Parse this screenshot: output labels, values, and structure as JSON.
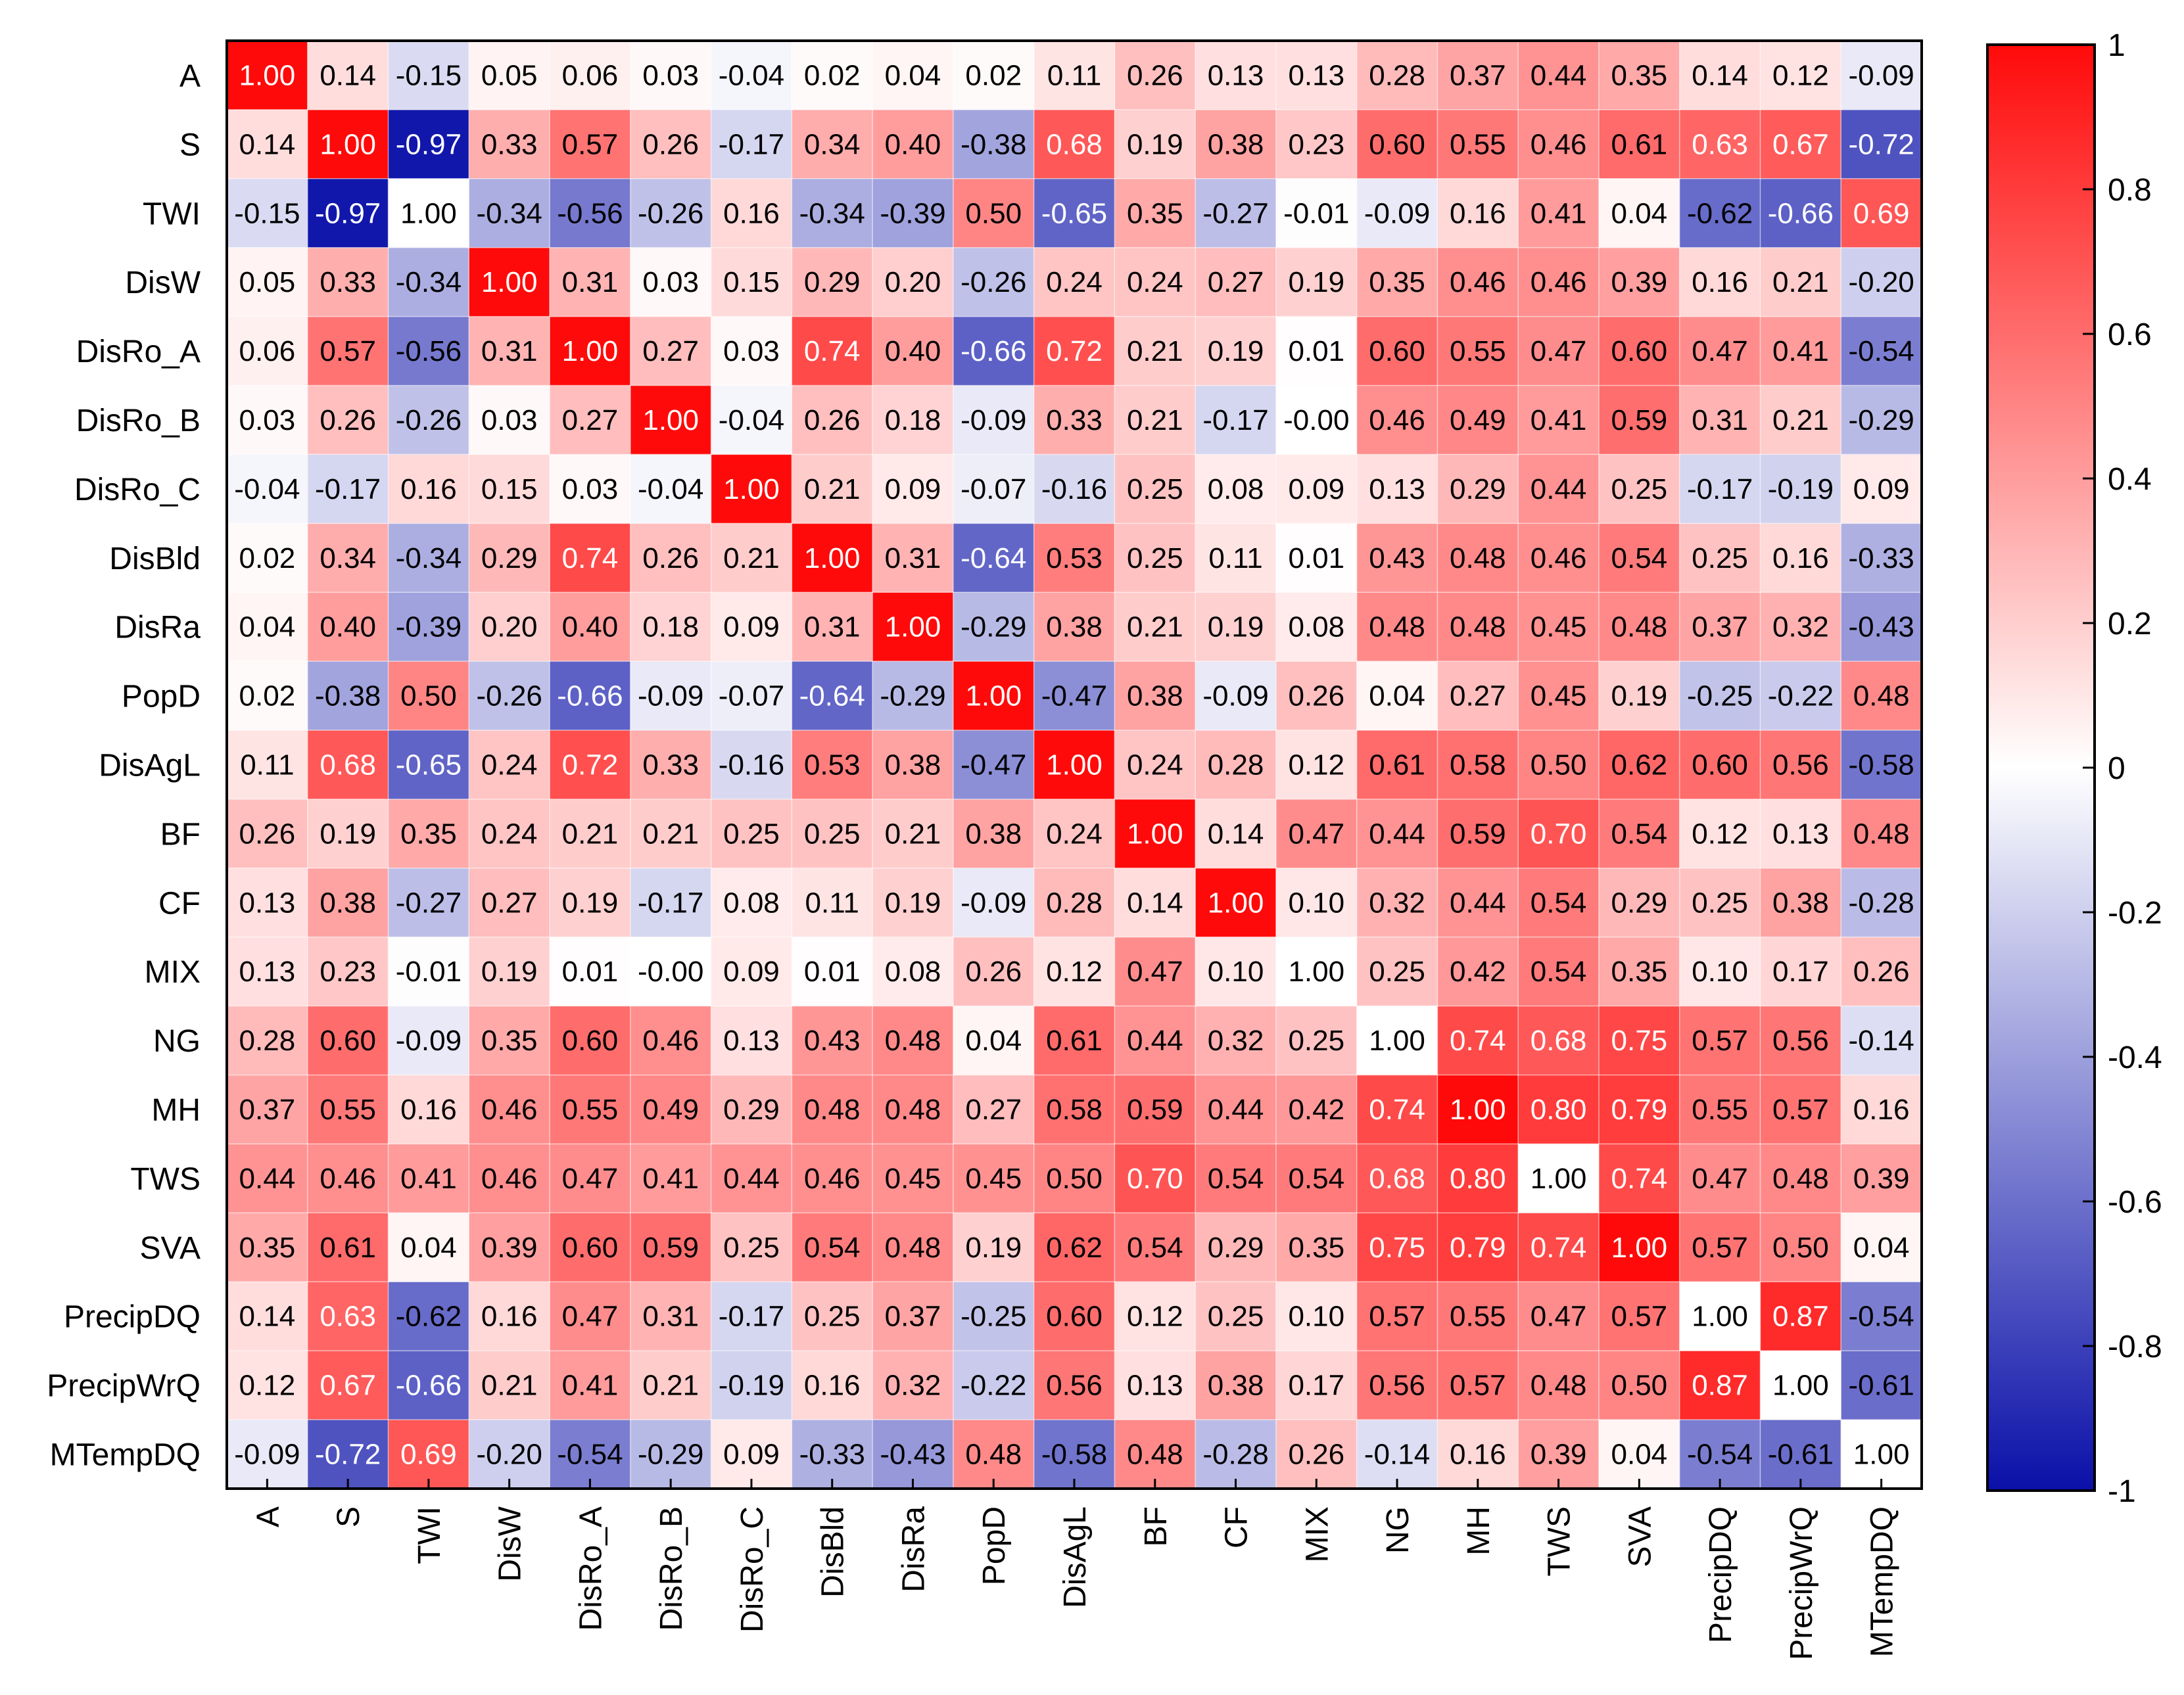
{
  "chart_data": {
    "type": "heatmap",
    "title": "",
    "variables": [
      "A",
      "S",
      "TWI",
      "DisW",
      "DisRo_A",
      "DisRo_B",
      "DisRo_C",
      "DisBld",
      "DisRa",
      "PopD",
      "DisAgL",
      "BF",
      "CF",
      "MIX",
      "NG",
      "MH",
      "TWS",
      "SVA",
      "PrecipDQ",
      "PrecipWrQ",
      "MTempDQ"
    ],
    "matrix": [
      [
        "1.00",
        "0.14",
        "-0.15",
        "0.05",
        "0.06",
        "0.03",
        "-0.04",
        "0.02",
        "0.04",
        "0.02",
        "0.11",
        "0.26",
        "0.13",
        "0.13",
        "0.28",
        "0.37",
        "0.44",
        "0.35",
        "0.14",
        "0.12",
        "-0.09"
      ],
      [
        "0.14",
        "1.00",
        "-0.97",
        "0.33",
        "0.57",
        "0.26",
        "-0.17",
        "0.34",
        "0.40",
        "-0.38",
        "0.68",
        "0.19",
        "0.38",
        "0.23",
        "0.60",
        "0.55",
        "0.46",
        "0.61",
        "0.63",
        "0.67",
        "-0.72"
      ],
      [
        "-0.15",
        "-0.97",
        "1.00",
        "-0.34",
        "-0.56",
        "-0.26",
        "0.16",
        "-0.34",
        "-0.39",
        "0.50",
        "-0.65",
        "0.35",
        "-0.27",
        "-0.01",
        "-0.09",
        "0.16",
        "0.41",
        "0.04",
        "-0.62",
        "-0.66",
        "0.69"
      ],
      [
        "0.05",
        "0.33",
        "-0.34",
        "1.00",
        "0.31",
        "0.03",
        "0.15",
        "0.29",
        "0.20",
        "-0.26",
        "0.24",
        "0.24",
        "0.27",
        "0.19",
        "0.35",
        "0.46",
        "0.46",
        "0.39",
        "0.16",
        "0.21",
        "-0.20"
      ],
      [
        "0.06",
        "0.57",
        "-0.56",
        "0.31",
        "1.00",
        "0.27",
        "0.03",
        "0.74",
        "0.40",
        "-0.66",
        "0.72",
        "0.21",
        "0.19",
        "0.01",
        "0.60",
        "0.55",
        "0.47",
        "0.60",
        "0.47",
        "0.41",
        "-0.54"
      ],
      [
        "0.03",
        "0.26",
        "-0.26",
        "0.03",
        "0.27",
        "1.00",
        "-0.04",
        "0.26",
        "0.18",
        "-0.09",
        "0.33",
        "0.21",
        "-0.17",
        "-0.00",
        "0.46",
        "0.49",
        "0.41",
        "0.59",
        "0.31",
        "0.21",
        "-0.29"
      ],
      [
        "-0.04",
        "-0.17",
        "0.16",
        "0.15",
        "0.03",
        "-0.04",
        "1.00",
        "0.21",
        "0.09",
        "-0.07",
        "-0.16",
        "0.25",
        "0.08",
        "0.09",
        "0.13",
        "0.29",
        "0.44",
        "0.25",
        "-0.17",
        "-0.19",
        "0.09"
      ],
      [
        "0.02",
        "0.34",
        "-0.34",
        "0.29",
        "0.74",
        "0.26",
        "0.21",
        "1.00",
        "0.31",
        "-0.64",
        "0.53",
        "0.25",
        "0.11",
        "0.01",
        "0.43",
        "0.48",
        "0.46",
        "0.54",
        "0.25",
        "0.16",
        "-0.33"
      ],
      [
        "0.04",
        "0.40",
        "-0.39",
        "0.20",
        "0.40",
        "0.18",
        "0.09",
        "0.31",
        "1.00",
        "-0.29",
        "0.38",
        "0.21",
        "0.19",
        "0.08",
        "0.48",
        "0.48",
        "0.45",
        "0.48",
        "0.37",
        "0.32",
        "-0.43"
      ],
      [
        "0.02",
        "-0.38",
        "0.50",
        "-0.26",
        "-0.66",
        "-0.09",
        "-0.07",
        "-0.64",
        "-0.29",
        "1.00",
        "-0.47",
        "0.38",
        "-0.09",
        "0.26",
        "0.04",
        "0.27",
        "0.45",
        "0.19",
        "-0.25",
        "-0.22",
        "0.48"
      ],
      [
        "0.11",
        "0.68",
        "-0.65",
        "0.24",
        "0.72",
        "0.33",
        "-0.16",
        "0.53",
        "0.38",
        "-0.47",
        "1.00",
        "0.24",
        "0.28",
        "0.12",
        "0.61",
        "0.58",
        "0.50",
        "0.62",
        "0.60",
        "0.56",
        "-0.58"
      ],
      [
        "0.26",
        "0.19",
        "0.35",
        "0.24",
        "0.21",
        "0.21",
        "0.25",
        "0.25",
        "0.21",
        "0.38",
        "0.24",
        "1.00",
        "0.14",
        "0.47",
        "0.44",
        "0.59",
        "0.70",
        "0.54",
        "0.12",
        "0.13",
        "0.48"
      ],
      [
        "0.13",
        "0.38",
        "-0.27",
        "0.27",
        "0.19",
        "-0.17",
        "0.08",
        "0.11",
        "0.19",
        "-0.09",
        "0.28",
        "0.14",
        "1.00",
        "0.10",
        "0.32",
        "0.44",
        "0.54",
        "0.29",
        "0.25",
        "0.38",
        "-0.28"
      ],
      [
        "0.13",
        "0.23",
        "-0.01",
        "0.19",
        "0.01",
        "-0.00",
        "0.09",
        "0.01",
        "0.08",
        "0.26",
        "0.12",
        "0.47",
        "0.10",
        "1.00",
        "0.25",
        "0.42",
        "0.54",
        "0.35",
        "0.10",
        "0.17",
        "0.26"
      ],
      [
        "0.28",
        "0.60",
        "-0.09",
        "0.35",
        "0.60",
        "0.46",
        "0.13",
        "0.43",
        "0.48",
        "0.04",
        "0.61",
        "0.44",
        "0.32",
        "0.25",
        "1.00",
        "0.74",
        "0.68",
        "0.75",
        "0.57",
        "0.56",
        "-0.14"
      ],
      [
        "0.37",
        "0.55",
        "0.16",
        "0.46",
        "0.55",
        "0.49",
        "0.29",
        "0.48",
        "0.48",
        "0.27",
        "0.58",
        "0.59",
        "0.44",
        "0.42",
        "0.74",
        "1.00",
        "0.80",
        "0.79",
        "0.55",
        "0.57",
        "0.16"
      ],
      [
        "0.44",
        "0.46",
        "0.41",
        "0.46",
        "0.47",
        "0.41",
        "0.44",
        "0.46",
        "0.45",
        "0.45",
        "0.50",
        "0.70",
        "0.54",
        "0.54",
        "0.68",
        "0.80",
        "1.00",
        "0.74",
        "0.47",
        "0.48",
        "0.39"
      ],
      [
        "0.35",
        "0.61",
        "0.04",
        "0.39",
        "0.60",
        "0.59",
        "0.25",
        "0.54",
        "0.48",
        "0.19",
        "0.62",
        "0.54",
        "0.29",
        "0.35",
        "0.75",
        "0.79",
        "0.74",
        "1.00",
        "0.57",
        "0.50",
        "0.04"
      ],
      [
        "0.14",
        "0.63",
        "-0.62",
        "0.16",
        "0.47",
        "0.31",
        "-0.17",
        "0.25",
        "0.37",
        "-0.25",
        "0.60",
        "0.12",
        "0.25",
        "0.10",
        "0.57",
        "0.55",
        "0.47",
        "0.57",
        "1.00",
        "0.87",
        "-0.54"
      ],
      [
        "0.12",
        "0.67",
        "-0.66",
        "0.21",
        "0.41",
        "0.21",
        "-0.19",
        "0.16",
        "0.32",
        "-0.22",
        "0.56",
        "0.13",
        "0.38",
        "0.17",
        "0.56",
        "0.57",
        "0.48",
        "0.50",
        "0.87",
        "1.00",
        "-0.61"
      ],
      [
        "-0.09",
        "-0.72",
        "0.69",
        "-0.20",
        "-0.54",
        "-0.29",
        "0.09",
        "-0.33",
        "-0.43",
        "0.48",
        "-0.58",
        "0.48",
        "-0.28",
        "0.26",
        "-0.14",
        "0.16",
        "0.39",
        "0.04",
        "-0.54",
        "-0.61",
        "1.00"
      ]
    ],
    "white_cells": [
      [
        2,
        2
      ],
      [
        13,
        13
      ],
      [
        14,
        14
      ],
      [
        16,
        16
      ],
      [
        18,
        18
      ],
      [
        19,
        19
      ],
      [
        20,
        20
      ]
    ],
    "colorbar": {
      "range": [
        -1,
        1
      ],
      "ticks": [
        "1",
        "0.8",
        "0.6",
        "0.4",
        "0.2",
        "0",
        "-0.2",
        "-0.4",
        "-0.6",
        "-0.8",
        "-1"
      ],
      "colors": {
        "low": "#0a10a8",
        "mid": "#ffffff",
        "high": "#ff0a0a"
      }
    }
  }
}
